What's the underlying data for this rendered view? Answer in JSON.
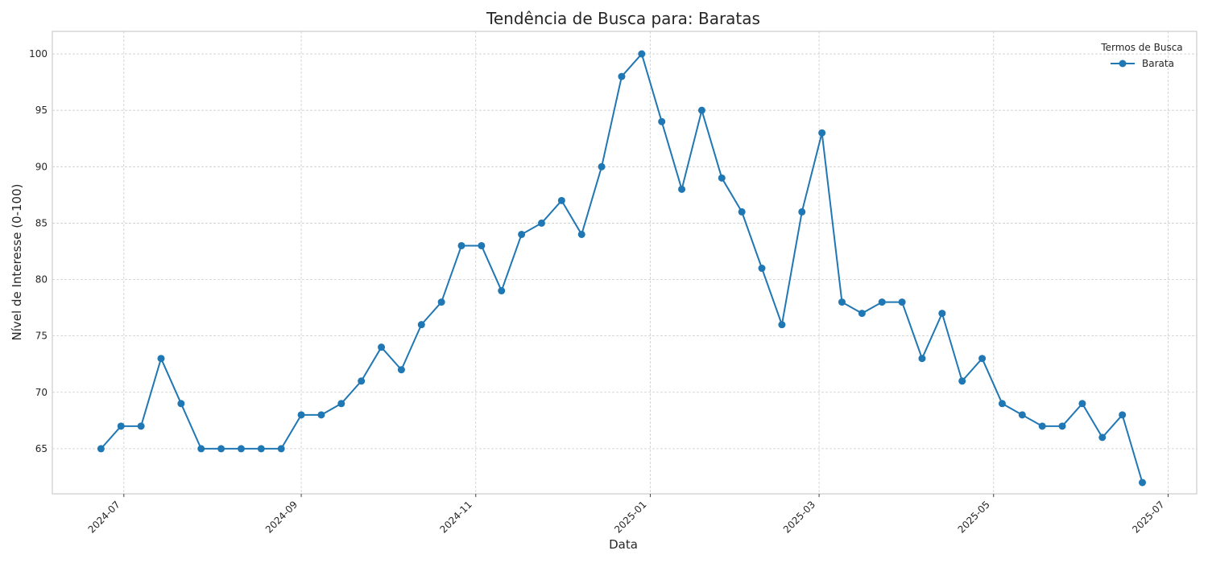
{
  "chart_data": {
    "type": "line",
    "title": "Tendência de Busca para: Baratas",
    "xlabel": "Data",
    "ylabel": "Nível de Interesse (0-100)",
    "ylim": [
      61.0,
      102.0
    ],
    "xlim": [
      "2024-06-06",
      "2025-07-11"
    ],
    "yticks": [
      65,
      70,
      75,
      80,
      85,
      90,
      95,
      100
    ],
    "xticks": [
      "2024-07-01",
      "2024-09-01",
      "2024-11-01",
      "2025-01-01",
      "2025-03-01",
      "2025-05-01",
      "2025-07-01"
    ],
    "xtick_labels": [
      "2024-07",
      "2024-09",
      "2024-11",
      "2025-01",
      "2025-03",
      "2025-05",
      "2025-07"
    ],
    "grid": true,
    "legend": {
      "title": "Termos de Busca",
      "position": "top-right"
    },
    "series": [
      {
        "name": "Barata",
        "color": "#1f77b4",
        "x": [
          "2024-06-23",
          "2024-06-30",
          "2024-07-07",
          "2024-07-14",
          "2024-07-21",
          "2024-07-28",
          "2024-08-04",
          "2024-08-11",
          "2024-08-18",
          "2024-08-25",
          "2024-09-01",
          "2024-09-08",
          "2024-09-15",
          "2024-09-22",
          "2024-09-29",
          "2024-10-06",
          "2024-10-13",
          "2024-10-20",
          "2024-10-27",
          "2024-11-03",
          "2024-11-10",
          "2024-11-17",
          "2024-11-24",
          "2024-12-01",
          "2024-12-08",
          "2024-12-15",
          "2024-12-22",
          "2024-12-29",
          "2025-01-05",
          "2025-01-12",
          "2025-01-19",
          "2025-01-26",
          "2025-02-02",
          "2025-02-09",
          "2025-02-16",
          "2025-02-23",
          "2025-03-02",
          "2025-03-09",
          "2025-03-16",
          "2025-03-23",
          "2025-03-30",
          "2025-04-06",
          "2025-04-13",
          "2025-04-20",
          "2025-04-27",
          "2025-05-04",
          "2025-05-11",
          "2025-05-18",
          "2025-05-25",
          "2025-06-01",
          "2025-06-08",
          "2025-06-15",
          "2025-06-22"
        ],
        "values": [
          65,
          67,
          67,
          73,
          69,
          65,
          65,
          65,
          65,
          65,
          68,
          68,
          69,
          71,
          74,
          72,
          76,
          78,
          83,
          83,
          79,
          84,
          85,
          87,
          84,
          90,
          98,
          100,
          94,
          88,
          95,
          89,
          86,
          81,
          76,
          86,
          93,
          78,
          77,
          78,
          78,
          73,
          77,
          71,
          73,
          69,
          68,
          67,
          67,
          69,
          66,
          68,
          62
        ]
      }
    ]
  }
}
